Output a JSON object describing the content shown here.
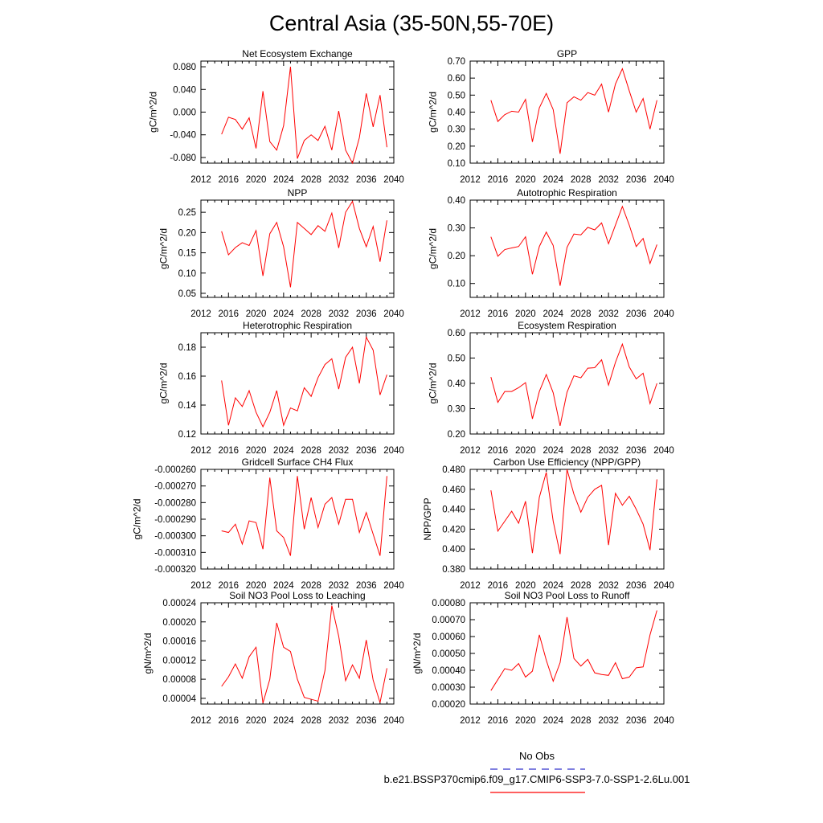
{
  "title": "Central Asia (35-50N,55-70E)",
  "legend": {
    "obs_label": "No Obs",
    "obs_color": "#3333cc",
    "model_label": "b.e21.BSSP370cmip6.f09_g17.CMIP6-SSP3-7.0-SSP1-2.6Lu.001",
    "model_color": "#ff0000"
  },
  "chart_data": [
    {
      "type": "line",
      "title": "Net Ecosystem Exchange",
      "ylabel": "gC/m^2/d",
      "xlim": [
        2012,
        2040
      ],
      "ylim": [
        -0.09,
        0.09
      ],
      "xticks": [
        "2012",
        "2016",
        "2020",
        "2024",
        "2028",
        "2032",
        "2036",
        "2040"
      ],
      "yticks": [
        -0.08,
        -0.04,
        0.0,
        0.04,
        0.08
      ],
      "ytick_labels": [
        "-0.080",
        "-0.040",
        "0.000",
        "0.040",
        "0.080"
      ],
      "x": [
        2015,
        2016,
        2017,
        2018,
        2019,
        2020,
        2021,
        2022,
        2023,
        2024,
        2025,
        2026,
        2027,
        2028,
        2029,
        2030,
        2031,
        2032,
        2033,
        2034,
        2035,
        2036,
        2037,
        2038,
        2039
      ],
      "series": [
        {
          "values": [
            -0.039,
            -0.009,
            -0.013,
            -0.03,
            -0.01,
            -0.064,
            0.037,
            -0.052,
            -0.067,
            -0.024,
            0.08,
            -0.082,
            -0.05,
            -0.04,
            -0.05,
            -0.025,
            -0.067,
            0.002,
            -0.067,
            -0.09,
            -0.045,
            0.033,
            -0.026,
            0.03,
            -0.062
          ]
        }
      ]
    },
    {
      "type": "line",
      "title": "GPP",
      "ylabel": "gC/m^2/d",
      "xlim": [
        2012,
        2040
      ],
      "ylim": [
        0.1,
        0.7
      ],
      "xticks": [
        "2012",
        "2016",
        "2020",
        "2024",
        "2028",
        "2032",
        "2036",
        "2040"
      ],
      "yticks": [
        0.1,
        0.2,
        0.3,
        0.4,
        0.5,
        0.6,
        0.7
      ],
      "ytick_labels": [
        "0.10",
        "0.20",
        "0.30",
        "0.40",
        "0.50",
        "0.60",
        "0.70"
      ],
      "x": [
        2015,
        2016,
        2017,
        2018,
        2019,
        2020,
        2021,
        2022,
        2023,
        2024,
        2025,
        2026,
        2027,
        2028,
        2029,
        2030,
        2031,
        2032,
        2033,
        2034,
        2035,
        2036,
        2037,
        2038,
        2039
      ],
      "series": [
        {
          "values": [
            0.47,
            0.345,
            0.385,
            0.405,
            0.4,
            0.475,
            0.225,
            0.425,
            0.51,
            0.415,
            0.155,
            0.455,
            0.49,
            0.47,
            0.515,
            0.5,
            0.565,
            0.4,
            0.565,
            0.655,
            0.525,
            0.4,
            0.48,
            0.3,
            0.47
          ]
        }
      ]
    },
    {
      "type": "line",
      "title": "NPP",
      "ylabel": "gC/m^2/d",
      "xlim": [
        2012,
        2040
      ],
      "ylim": [
        0.04,
        0.28
      ],
      "xticks": [
        "2012",
        "2016",
        "2020",
        "2024",
        "2028",
        "2032",
        "2036",
        "2040"
      ],
      "yticks": [
        0.05,
        0.1,
        0.15,
        0.2,
        0.25
      ],
      "ytick_labels": [
        "0.05",
        "0.10",
        "0.15",
        "0.20",
        "0.25"
      ],
      "x": [
        2015,
        2016,
        2017,
        2018,
        2019,
        2020,
        2021,
        2022,
        2023,
        2024,
        2025,
        2026,
        2027,
        2028,
        2029,
        2030,
        2031,
        2032,
        2033,
        2034,
        2035,
        2036,
        2037,
        2038,
        2039
      ],
      "series": [
        {
          "values": [
            0.203,
            0.145,
            0.163,
            0.175,
            0.168,
            0.205,
            0.093,
            0.197,
            0.225,
            0.165,
            0.065,
            0.225,
            0.21,
            0.195,
            0.217,
            0.203,
            0.248,
            0.162,
            0.25,
            0.277,
            0.21,
            0.165,
            0.215,
            0.128,
            0.23
          ]
        }
      ]
    },
    {
      "type": "line",
      "title": "Autotrophic Respiration",
      "ylabel": "gC/m^2/d",
      "xlim": [
        2012,
        2040
      ],
      "ylim": [
        0.05,
        0.4
      ],
      "xticks": [
        "2012",
        "2016",
        "2020",
        "2024",
        "2028",
        "2032",
        "2036",
        "2040"
      ],
      "yticks": [
        0.1,
        0.2,
        0.3,
        0.4
      ],
      "ytick_labels": [
        "0.10",
        "0.20",
        "0.30",
        "0.40"
      ],
      "x": [
        2015,
        2016,
        2017,
        2018,
        2019,
        2020,
        2021,
        2022,
        2023,
        2024,
        2025,
        2026,
        2027,
        2028,
        2029,
        2030,
        2031,
        2032,
        2033,
        2034,
        2035,
        2036,
        2037,
        2038,
        2039
      ],
      "series": [
        {
          "values": [
            0.268,
            0.198,
            0.222,
            0.228,
            0.233,
            0.268,
            0.133,
            0.233,
            0.285,
            0.237,
            0.092,
            0.23,
            0.278,
            0.275,
            0.302,
            0.293,
            0.318,
            0.243,
            0.31,
            0.377,
            0.31,
            0.233,
            0.262,
            0.172,
            0.24
          ]
        }
      ]
    },
    {
      "type": "line",
      "title": "Heterotrophic Respiration",
      "ylabel": "gC/m^2/d",
      "xlim": [
        2012,
        2040
      ],
      "ylim": [
        0.12,
        0.19
      ],
      "xticks": [
        "2012",
        "2016",
        "2020",
        "2024",
        "2028",
        "2032",
        "2036",
        "2040"
      ],
      "yticks": [
        0.12,
        0.14,
        0.16,
        0.18
      ],
      "ytick_labels": [
        "0.12",
        "0.14",
        "0.16",
        "0.18"
      ],
      "x": [
        2015,
        2016,
        2017,
        2018,
        2019,
        2020,
        2021,
        2022,
        2023,
        2024,
        2025,
        2026,
        2027,
        2028,
        2029,
        2030,
        2031,
        2032,
        2033,
        2034,
        2035,
        2036,
        2037,
        2038,
        2039
      ],
      "series": [
        {
          "values": [
            0.157,
            0.126,
            0.145,
            0.139,
            0.15,
            0.135,
            0.125,
            0.135,
            0.15,
            0.126,
            0.138,
            0.136,
            0.152,
            0.146,
            0.159,
            0.168,
            0.172,
            0.151,
            0.173,
            0.18,
            0.155,
            0.187,
            0.178,
            0.147,
            0.161
          ]
        }
      ]
    },
    {
      "type": "line",
      "title": "Ecosystem Respiration",
      "ylabel": "gC/m^2/d",
      "xlim": [
        2012,
        2040
      ],
      "ylim": [
        0.2,
        0.6
      ],
      "xticks": [
        "2012",
        "2016",
        "2020",
        "2024",
        "2028",
        "2032",
        "2036",
        "2040"
      ],
      "yticks": [
        0.2,
        0.3,
        0.4,
        0.5,
        0.6
      ],
      "ytick_labels": [
        "0.20",
        "0.30",
        "0.40",
        "0.50",
        "0.60"
      ],
      "x": [
        2015,
        2016,
        2017,
        2018,
        2019,
        2020,
        2021,
        2022,
        2023,
        2024,
        2025,
        2026,
        2027,
        2028,
        2029,
        2030,
        2031,
        2032,
        2033,
        2034,
        2035,
        2036,
        2037,
        2038,
        2039
      ],
      "series": [
        {
          "values": [
            0.425,
            0.325,
            0.368,
            0.368,
            0.383,
            0.403,
            0.26,
            0.368,
            0.435,
            0.363,
            0.232,
            0.365,
            0.43,
            0.422,
            0.46,
            0.462,
            0.493,
            0.393,
            0.483,
            0.555,
            0.465,
            0.418,
            0.44,
            0.32,
            0.4
          ]
        }
      ]
    },
    {
      "type": "line",
      "title": "Gridcell Surface CH4 Flux",
      "ylabel": "gC/m^2/d",
      "xlim": [
        2012,
        2040
      ],
      "ylim": [
        -0.00032,
        -0.00026
      ],
      "xticks": [
        "2012",
        "2016",
        "2020",
        "2024",
        "2028",
        "2032",
        "2036",
        "2040"
      ],
      "yticks": [
        -0.00032,
        -0.00031,
        -0.0003,
        -0.00029,
        -0.00028,
        -0.00027,
        -0.00026
      ],
      "ytick_labels": [
        "-0.000320",
        "-0.000310",
        "-0.000300",
        "-0.000290",
        "-0.000280",
        "-0.000270",
        "-0.000260"
      ],
      "x": [
        2015,
        2016,
        2017,
        2018,
        2019,
        2020,
        2021,
        2022,
        2023,
        2024,
        2025,
        2026,
        2027,
        2028,
        2029,
        2030,
        2031,
        2032,
        2033,
        2034,
        2035,
        2036,
        2037,
        2038,
        2039
      ],
      "series": [
        {
          "values": [
            -0.000297,
            -0.000298,
            -0.000293,
            -0.000305,
            -0.000291,
            -0.000292,
            -0.000308,
            -0.000265,
            -0.000297,
            -0.000301,
            -0.000312,
            -0.000264,
            -0.000296,
            -0.000277,
            -0.000295,
            -0.000281,
            -0.000277,
            -0.000293,
            -0.000278,
            -0.000278,
            -0.000298,
            -0.000286,
            -0.000299,
            -0.000312,
            -0.000264
          ]
        }
      ]
    },
    {
      "type": "line",
      "title": "Carbon Use Efficiency (NPP/GPP)",
      "ylabel": "NPP/GPP",
      "xlim": [
        2012,
        2040
      ],
      "ylim": [
        0.38,
        0.48
      ],
      "xticks": [
        "2012",
        "2016",
        "2020",
        "2024",
        "2028",
        "2032",
        "2036",
        "2040"
      ],
      "yticks": [
        0.38,
        0.4,
        0.42,
        0.44,
        0.46,
        0.48
      ],
      "ytick_labels": [
        "0.380",
        "0.400",
        "0.420",
        "0.440",
        "0.460",
        "0.480"
      ],
      "x": [
        2015,
        2016,
        2017,
        2018,
        2019,
        2020,
        2021,
        2022,
        2023,
        2024,
        2025,
        2026,
        2027,
        2028,
        2029,
        2030,
        2031,
        2032,
        2033,
        2034,
        2035,
        2036,
        2037,
        2038,
        2039
      ],
      "series": [
        {
          "values": [
            0.459,
            0.418,
            0.428,
            0.438,
            0.426,
            0.448,
            0.396,
            0.452,
            0.477,
            0.428,
            0.395,
            0.48,
            0.455,
            0.437,
            0.452,
            0.46,
            0.464,
            0.404,
            0.456,
            0.444,
            0.453,
            0.44,
            0.425,
            0.399,
            0.47
          ]
        }
      ]
    },
    {
      "type": "line",
      "title": "Soil NO3 Pool Loss to Leaching",
      "ylabel": "gN/m^2/d",
      "xlim": [
        2012,
        2040
      ],
      "ylim": [
        2.8e-05,
        0.00024
      ],
      "xticks": [
        "2012",
        "2016",
        "2020",
        "2024",
        "2028",
        "2032",
        "2036",
        "2040"
      ],
      "yticks": [
        4e-05,
        8e-05,
        0.00012,
        0.00016,
        0.0002,
        0.00024
      ],
      "ytick_labels": [
        "0.00004",
        "0.00008",
        "0.00012",
        "0.00016",
        "0.00020",
        "0.00024"
      ],
      "x": [
        2015,
        2016,
        2017,
        2018,
        2019,
        2020,
        2021,
        2022,
        2023,
        2024,
        2025,
        2026,
        2027,
        2028,
        2029,
        2030,
        2031,
        2032,
        2033,
        2034,
        2035,
        2036,
        2037,
        2038,
        2039
      ],
      "series": [
        {
          "values": [
            6.5e-05,
            8.5e-05,
            0.000112,
            8.2e-05,
            0.000127,
            0.000147,
            3e-05,
            8e-05,
            0.000198,
            0.000147,
            0.000138,
            8e-05,
            4.2e-05,
            3.8e-05,
            3.4e-05,
            9.8e-05,
            0.000234,
            0.00017,
            7.7e-05,
            0.00011,
            8.2e-05,
            0.000162,
            7.8e-05,
            3.1e-05,
            0.000103
          ]
        }
      ]
    },
    {
      "type": "line",
      "title": "Soil NO3 Pool Loss to Runoff",
      "ylabel": "gN/m^2/d",
      "xlim": [
        2012,
        2040
      ],
      "ylim": [
        0.0002,
        0.0008
      ],
      "xticks": [
        "2012",
        "2016",
        "2020",
        "2024",
        "2028",
        "2032",
        "2036",
        "2040"
      ],
      "yticks": [
        0.0002,
        0.0003,
        0.0004,
        0.0005,
        0.0006,
        0.0007,
        0.0008
      ],
      "ytick_labels": [
        "0.00020",
        "0.00030",
        "0.00040",
        "0.00050",
        "0.00060",
        "0.00070",
        "0.00080"
      ],
      "x": [
        2015,
        2016,
        2017,
        2018,
        2019,
        2020,
        2021,
        2022,
        2023,
        2024,
        2025,
        2026,
        2027,
        2028,
        2029,
        2030,
        2031,
        2032,
        2033,
        2034,
        2035,
        2036,
        2037,
        2038,
        2039
      ],
      "series": [
        {
          "values": [
            0.00028,
            0.000345,
            0.00041,
            0.0004,
            0.00044,
            0.00036,
            0.000395,
            0.00061,
            0.00046,
            0.000335,
            0.000445,
            0.000715,
            0.00047,
            0.000425,
            0.000465,
            0.000385,
            0.000375,
            0.00037,
            0.000445,
            0.00035,
            0.00036,
            0.000415,
            0.00042,
            0.00061,
            0.000755
          ]
        }
      ]
    }
  ]
}
